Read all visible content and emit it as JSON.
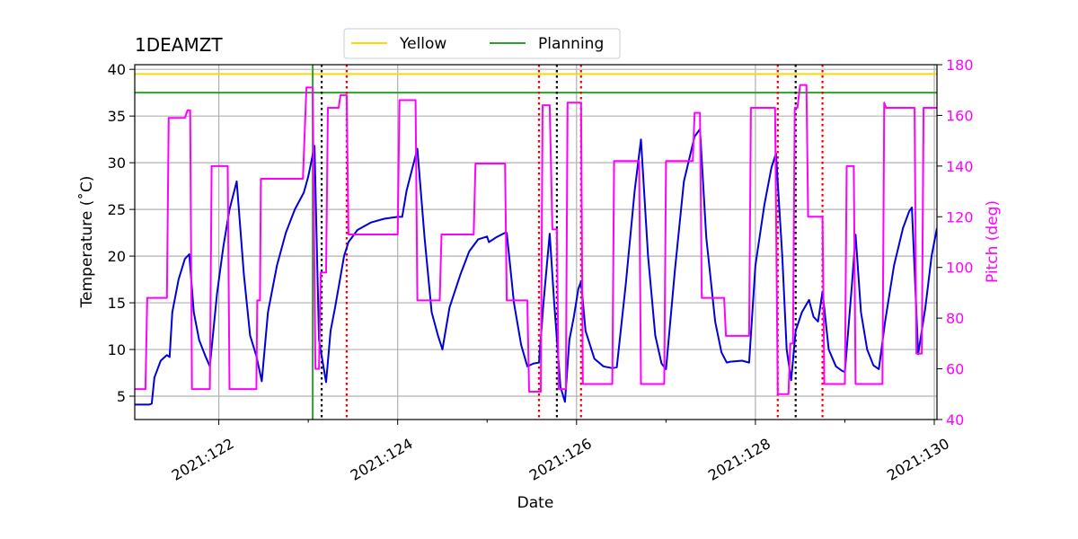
{
  "chart_data": {
    "type": "line",
    "title": "1DEAMZT",
    "xlabel": "Date",
    "ylabel": "Temperature ($^\\circ$C)",
    "ylabel_display": "Temperature (˚C)",
    "y2label": "Pitch (deg)",
    "colors": {
      "temperature": "#0000dd",
      "pitch": "#ff00ff",
      "yellow": "#ffd700",
      "planning": "#2ca02c",
      "red_marker": "#ee0000",
      "black_marker": "#000000",
      "grid": "#b0b0b0"
    },
    "xlim": [
      121.06,
      130.03
    ],
    "ylim": [
      2.5,
      40.5
    ],
    "y2lim": [
      40,
      180
    ],
    "grid": true,
    "x_ticks": [
      {
        "value": 122,
        "label": "2021:122"
      },
      {
        "value": 124,
        "label": "2021:124"
      },
      {
        "value": 126,
        "label": "2021:126"
      },
      {
        "value": 128,
        "label": "2021:128"
      },
      {
        "value": 130,
        "label": "2021:130"
      }
    ],
    "x_minor_ticks": [
      123,
      125,
      127,
      129
    ],
    "y_ticks": [
      5,
      10,
      15,
      20,
      25,
      30,
      35,
      40
    ],
    "y2_ticks": [
      40,
      60,
      80,
      100,
      120,
      140,
      160,
      180
    ],
    "limits": [
      {
        "name": "Yellow",
        "value": 39.5
      },
      {
        "name": "Planning",
        "value": 37.5
      }
    ],
    "legend": {
      "placement": "top-center",
      "entries": [
        "Yellow",
        "Planning"
      ]
    },
    "now_line_x": 123.05,
    "black_markers_x": [
      123.15,
      125.78,
      128.45
    ],
    "red_markers_x": [
      123.43,
      125.58,
      126.05,
      128.25,
      128.75
    ],
    "series": [
      {
        "axis": "left",
        "points": [
          [
            121.06,
            4.1
          ],
          [
            121.22,
            4.1
          ],
          [
            121.25,
            4.2
          ],
          [
            121.28,
            7.0
          ],
          [
            121.35,
            8.8
          ],
          [
            121.42,
            9.4
          ],
          [
            121.45,
            9.2
          ],
          [
            121.48,
            14.0
          ],
          [
            121.55,
            17.5
          ],
          [
            121.62,
            19.7
          ],
          [
            121.67,
            20.2
          ],
          [
            121.72,
            14.0
          ],
          [
            121.78,
            11.0
          ],
          [
            121.85,
            9.3
          ],
          [
            121.9,
            8.2
          ],
          [
            121.98,
            16.0
          ],
          [
            122.05,
            21.0
          ],
          [
            122.12,
            25.0
          ],
          [
            122.2,
            28.0
          ],
          [
            122.28,
            18.0
          ],
          [
            122.35,
            11.5
          ],
          [
            122.42,
            9.3
          ],
          [
            122.48,
            6.6
          ],
          [
            122.55,
            14.0
          ],
          [
            122.65,
            19.0
          ],
          [
            122.75,
            22.5
          ],
          [
            122.85,
            25.0
          ],
          [
            122.95,
            26.8
          ],
          [
            123.0,
            28.5
          ],
          [
            123.07,
            31.8
          ],
          [
            123.12,
            11.0
          ],
          [
            123.2,
            6.5
          ],
          [
            123.25,
            12.0
          ],
          [
            123.3,
            14.5
          ],
          [
            123.4,
            20.0
          ],
          [
            123.45,
            21.5
          ],
          [
            123.55,
            22.8
          ],
          [
            123.7,
            23.6
          ],
          [
            123.85,
            24.0
          ],
          [
            124.0,
            24.2
          ],
          [
            124.05,
            24.2
          ],
          [
            124.1,
            27.0
          ],
          [
            124.18,
            30.0
          ],
          [
            124.22,
            31.5
          ],
          [
            124.3,
            22.0
          ],
          [
            124.38,
            14.0
          ],
          [
            124.45,
            11.5
          ],
          [
            124.5,
            10.0
          ],
          [
            124.58,
            14.5
          ],
          [
            124.7,
            18.0
          ],
          [
            124.8,
            20.5
          ],
          [
            124.9,
            21.8
          ],
          [
            125.0,
            22.1
          ],
          [
            125.02,
            21.5
          ],
          [
            125.1,
            22.0
          ],
          [
            125.2,
            22.5
          ],
          [
            125.22,
            22.5
          ],
          [
            125.3,
            15.0
          ],
          [
            125.38,
            10.5
          ],
          [
            125.45,
            8.2
          ],
          [
            125.52,
            8.5
          ],
          [
            125.58,
            8.6
          ],
          [
            125.63,
            15.0
          ],
          [
            125.7,
            22.4
          ],
          [
            125.75,
            15.0
          ],
          [
            125.82,
            6.0
          ],
          [
            125.87,
            4.4
          ],
          [
            125.92,
            11.0
          ],
          [
            125.97,
            13.5
          ],
          [
            126.02,
            16.5
          ],
          [
            126.05,
            17.3
          ],
          [
            126.1,
            12.0
          ],
          [
            126.2,
            9.0
          ],
          [
            126.3,
            8.2
          ],
          [
            126.4,
            8.0
          ],
          [
            126.45,
            8.1
          ],
          [
            126.55,
            17.0
          ],
          [
            126.65,
            27.0
          ],
          [
            126.72,
            32.5
          ],
          [
            126.8,
            20.0
          ],
          [
            126.88,
            11.5
          ],
          [
            126.95,
            8.5
          ],
          [
            127.0,
            7.9
          ],
          [
            127.1,
            18.5
          ],
          [
            127.2,
            28.0
          ],
          [
            127.32,
            32.8
          ],
          [
            127.38,
            33.6
          ],
          [
            127.45,
            22.0
          ],
          [
            127.55,
            13.0
          ],
          [
            127.62,
            9.7
          ],
          [
            127.68,
            8.6
          ],
          [
            127.72,
            8.7
          ],
          [
            127.85,
            8.8
          ],
          [
            127.93,
            8.6
          ],
          [
            128.0,
            19.0
          ],
          [
            128.1,
            25.5
          ],
          [
            128.18,
            29.5
          ],
          [
            128.23,
            31.0
          ],
          [
            128.3,
            20.0
          ],
          [
            128.35,
            10.0
          ],
          [
            128.4,
            6.7
          ],
          [
            128.45,
            12.0
          ],
          [
            128.52,
            14.0
          ],
          [
            128.6,
            15.3
          ],
          [
            128.65,
            13.5
          ],
          [
            128.7,
            13.0
          ],
          [
            128.75,
            16.2
          ],
          [
            128.82,
            10.0
          ],
          [
            128.9,
            8.2
          ],
          [
            128.97,
            7.7
          ],
          [
            129.0,
            7.6
          ],
          [
            129.08,
            17.0
          ],
          [
            129.12,
            22.3
          ],
          [
            129.18,
            14.0
          ],
          [
            129.25,
            10.0
          ],
          [
            129.32,
            8.3
          ],
          [
            129.38,
            7.9
          ],
          [
            129.45,
            13.0
          ],
          [
            129.55,
            19.0
          ],
          [
            129.65,
            23.0
          ],
          [
            129.72,
            24.8
          ],
          [
            129.75,
            25.2
          ],
          [
            129.82,
            9.5
          ],
          [
            129.9,
            14.5
          ],
          [
            129.97,
            20.0
          ],
          [
            130.03,
            23.0
          ]
        ]
      },
      {
        "axis": "right",
        "points": [
          [
            121.06,
            52
          ],
          [
            121.18,
            52
          ],
          [
            121.2,
            88
          ],
          [
            121.42,
            88
          ],
          [
            121.44,
            159
          ],
          [
            121.62,
            159
          ],
          [
            121.65,
            162
          ],
          [
            121.68,
            162
          ],
          [
            121.7,
            52
          ],
          [
            121.9,
            52
          ],
          [
            121.92,
            140
          ],
          [
            122.1,
            140
          ],
          [
            122.12,
            52
          ],
          [
            122.42,
            52
          ],
          [
            122.43,
            87
          ],
          [
            122.46,
            87
          ],
          [
            122.47,
            135
          ],
          [
            122.92,
            135
          ],
          [
            122.94,
            135
          ],
          [
            122.98,
            171
          ],
          [
            123.05,
            171
          ],
          [
            123.08,
            60
          ],
          [
            123.12,
            60
          ],
          [
            123.14,
            98
          ],
          [
            123.2,
            98
          ],
          [
            123.22,
            163
          ],
          [
            123.34,
            163
          ],
          [
            123.36,
            168
          ],
          [
            123.43,
            168
          ],
          [
            123.45,
            113
          ],
          [
            124.0,
            113
          ],
          [
            124.02,
            166
          ],
          [
            124.2,
            166
          ],
          [
            124.22,
            87
          ],
          [
            124.47,
            87
          ],
          [
            124.49,
            113
          ],
          [
            124.85,
            113
          ],
          [
            124.87,
            141
          ],
          [
            125.2,
            141
          ],
          [
            125.22,
            87
          ],
          [
            125.45,
            87
          ],
          [
            125.47,
            51
          ],
          [
            125.6,
            51
          ],
          [
            125.62,
            164
          ],
          [
            125.7,
            164
          ],
          [
            125.73,
            115
          ],
          [
            125.78,
            115
          ],
          [
            125.8,
            52
          ],
          [
            125.88,
            52
          ],
          [
            125.9,
            165
          ],
          [
            126.05,
            165
          ],
          [
            126.07,
            54
          ],
          [
            126.4,
            54
          ],
          [
            126.42,
            142
          ],
          [
            126.7,
            142
          ],
          [
            126.72,
            54
          ],
          [
            126.98,
            54
          ],
          [
            127.0,
            142
          ],
          [
            127.3,
            142
          ],
          [
            127.32,
            161
          ],
          [
            127.38,
            161
          ],
          [
            127.4,
            88
          ],
          [
            127.65,
            88
          ],
          [
            127.67,
            73
          ],
          [
            127.93,
            73
          ],
          [
            127.95,
            163
          ],
          [
            128.22,
            163
          ],
          [
            128.25,
            50
          ],
          [
            128.37,
            50
          ],
          [
            128.39,
            70
          ],
          [
            128.42,
            70
          ],
          [
            128.44,
            163
          ],
          [
            128.47,
            163
          ],
          [
            128.5,
            172
          ],
          [
            128.57,
            172
          ],
          [
            128.59,
            120
          ],
          [
            128.75,
            120
          ],
          [
            128.77,
            54
          ],
          [
            129.0,
            54
          ],
          [
            129.02,
            140
          ],
          [
            129.1,
            140
          ],
          [
            129.12,
            54
          ],
          [
            129.42,
            54
          ],
          [
            129.44,
            165
          ],
          [
            129.46,
            163
          ],
          [
            129.48,
            163
          ],
          [
            129.78,
            163
          ],
          [
            129.8,
            66
          ],
          [
            129.86,
            66
          ],
          [
            129.88,
            163
          ],
          [
            130.03,
            163
          ]
        ]
      }
    ]
  }
}
